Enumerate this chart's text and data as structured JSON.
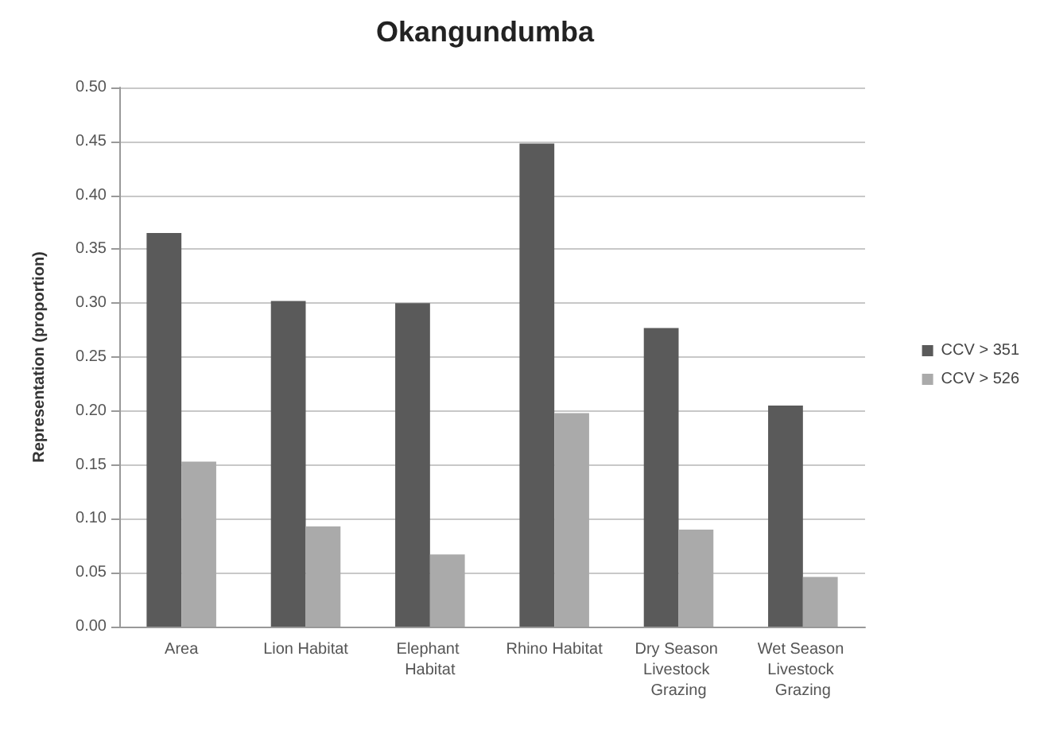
{
  "chart_data": {
    "type": "bar",
    "title": "Okangundumba",
    "ylabel": "Representation (proportion)",
    "categories": [
      "Area",
      "Lion Habitat",
      "Elephant Habitat",
      "Rhino Habitat",
      "Dry Season Livestock Grazing",
      "Wet Season Livestock Grazing"
    ],
    "series": [
      {
        "name": "CCV > 351",
        "color": "#5a5a5a",
        "values": [
          0.365,
          0.302,
          0.3,
          0.448,
          0.277,
          0.205
        ]
      },
      {
        "name": "CCV > 526",
        "color": "#aaaaaa",
        "values": [
          0.153,
          0.093,
          0.067,
          0.198,
          0.09,
          0.046
        ]
      }
    ],
    "ylim": [
      0,
      0.5
    ],
    "yticks": [
      {
        "value": 0,
        "label": "0.00"
      },
      {
        "value": 0.05,
        "label": "0.05"
      },
      {
        "value": 0.1,
        "label": "0.10"
      },
      {
        "value": 0.15,
        "label": "0.15"
      },
      {
        "value": 0.2,
        "label": "0.20"
      },
      {
        "value": 0.25,
        "label": "0.25"
      },
      {
        "value": 0.3,
        "label": "0.30"
      },
      {
        "value": 0.35,
        "label": "0.35"
      },
      {
        "value": 0.4,
        "label": "0.40"
      },
      {
        "value": 0.45,
        "label": "0.45"
      },
      {
        "value": 0.5,
        "label": "0.50"
      }
    ],
    "grid": "y",
    "legend": "right"
  }
}
